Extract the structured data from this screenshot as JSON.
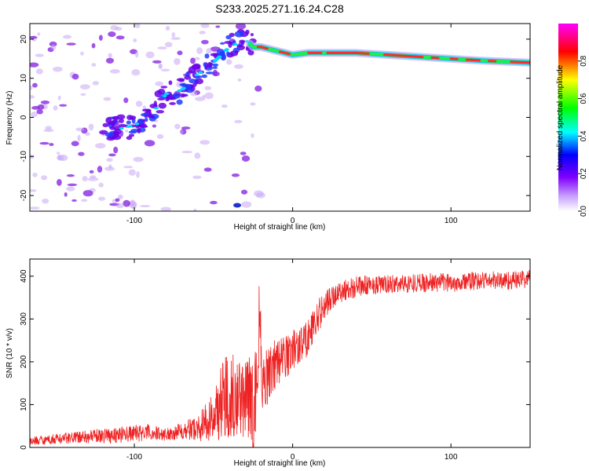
{
  "title": "S233.2025.271.16.24.C28",
  "chart_data": [
    {
      "type": "heatmap",
      "title": "S233.2025.271.16.24.C28",
      "xlabel": "Height of straight line (km)",
      "ylabel": "Frequency (Hz)",
      "xlim": [
        -166,
        150
      ],
      "ylim": [
        -24,
        24
      ],
      "xticks": [
        -100,
        0,
        100
      ],
      "yticks": [
        -20,
        -10,
        0,
        10,
        20
      ],
      "colorbar": {
        "label": "Normalized spectral amplitude",
        "range": [
          0,
          1
        ],
        "ticks": [
          0.0,
          0.2,
          0.4,
          0.6,
          0.8
        ],
        "colormap": [
          "#ffffff",
          "#8000ff",
          "#0000ff",
          "#00ffff",
          "#00ff00",
          "#ffff00",
          "#ff0000",
          "#ff00ff"
        ]
      },
      "signal_track": {
        "x": [
          -110,
          -100,
          -90,
          -80,
          -70,
          -60,
          -50,
          -40,
          -30,
          -25,
          -20,
          -10,
          0,
          10,
          20,
          40,
          60,
          80,
          100,
          120,
          150
        ],
        "frequency": [
          -3,
          -2,
          0,
          6,
          7,
          11,
          14,
          18,
          20,
          18,
          18,
          17,
          16,
          16.5,
          16.5,
          16.5,
          16,
          15.5,
          15,
          14.5,
          14
        ]
      }
    },
    {
      "type": "line",
      "xlabel": "Height of straight line (km)",
      "ylabel": "SNR (10 * v/v)",
      "xlim": [
        -166,
        150
      ],
      "ylim": [
        0,
        440
      ],
      "xticks": [
        -100,
        0,
        100
      ],
      "yticks": [
        0,
        100,
        200,
        300,
        400
      ],
      "series": [
        {
          "name": "SNR",
          "color": "#ee2222",
          "x": [
            -166,
            -150,
            -130,
            -110,
            -90,
            -80,
            -70,
            -60,
            -50,
            -45,
            -40,
            -35,
            -30,
            -25,
            -20,
            -15,
            -10,
            -5,
            0,
            5,
            10,
            15,
            20,
            25,
            30,
            40,
            50,
            60,
            80,
            100,
            120,
            140,
            150
          ],
          "mean": [
            15,
            20,
            25,
            30,
            35,
            30,
            40,
            45,
            70,
            110,
            130,
            120,
            110,
            100,
            140,
            180,
            200,
            210,
            230,
            240,
            260,
            300,
            330,
            350,
            365,
            375,
            380,
            380,
            385,
            385,
            390,
            390,
            395
          ],
          "noise": [
            10,
            12,
            15,
            20,
            20,
            15,
            20,
            30,
            60,
            90,
            110,
            90,
            90,
            130,
            80,
            70,
            60,
            55,
            50,
            45,
            45,
            40,
            35,
            30,
            28,
            25,
            22,
            22,
            22,
            22,
            22,
            22,
            22
          ]
        }
      ]
    }
  ]
}
